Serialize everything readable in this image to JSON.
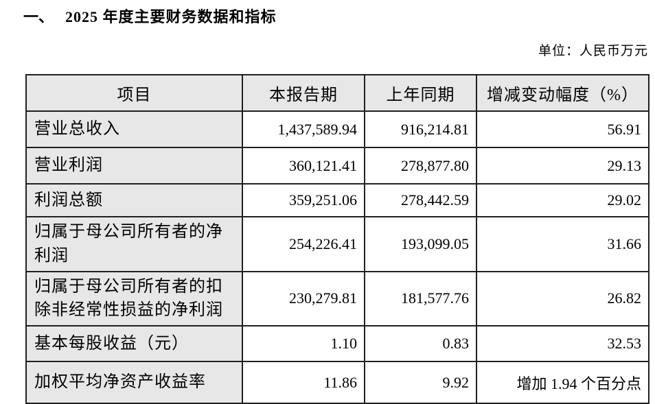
{
  "document": {
    "section_marker": "一、",
    "section_title": "2025 年度主要财务数据和指标",
    "unit_note": "单位：人民币万元"
  },
  "table": {
    "columns": [
      "项目",
      "本报告期",
      "上年同期",
      "增减变动幅度（%）"
    ],
    "rows": [
      {
        "item": "营业总收入",
        "current": "1,437,589.94",
        "prior": "916,214.81",
        "change": "56.91"
      },
      {
        "item": "营业利润",
        "current": "360,121.41",
        "prior": "278,877.80",
        "change": "29.13"
      },
      {
        "item": "利润总额",
        "current": "359,251.06",
        "prior": "278,442.59",
        "change": "29.02"
      },
      {
        "item": "归属于母公司所有者的净利润",
        "current": "254,226.41",
        "prior": "193,099.05",
        "change": "31.66"
      },
      {
        "item": "归属于母公司所有者的扣除非经常性损益的净利润",
        "current": "230,279.81",
        "prior": "181,577.76",
        "change": "26.82"
      },
      {
        "item": "基本每股收益（元）",
        "current": "1.10",
        "prior": "0.83",
        "change": "32.53"
      },
      {
        "item": "加权平均净资产收益率",
        "current": "11.86",
        "prior": "9.92",
        "change": "增加 1.94 个百分点"
      }
    ]
  },
  "colors": {
    "shaded_cell_bg": "#e7e7e7",
    "border": "#1f1f1f",
    "text": "#000000",
    "page_bg": "#ffffff"
  }
}
